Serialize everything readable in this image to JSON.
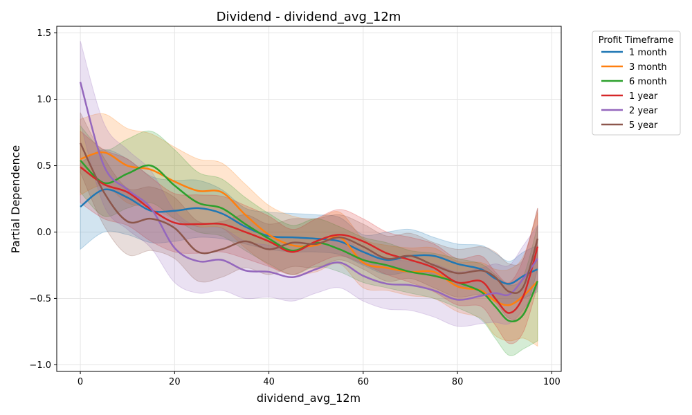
{
  "chart_data": {
    "type": "line",
    "title": "Dividend - dividend_avg_12m",
    "xlabel": "dividend_avg_12m",
    "ylabel": "Partial Dependence",
    "xlim": [
      -5,
      102
    ],
    "ylim": [
      -1.05,
      1.55
    ],
    "xticks": [
      0,
      20,
      40,
      60,
      80,
      100
    ],
    "yticks": [
      -1.0,
      -0.5,
      0.0,
      0.5,
      1.0,
      1.5
    ],
    "xtick_labels": [
      "0",
      "20",
      "40",
      "60",
      "80",
      "100"
    ],
    "ytick_labels": [
      "−1.0",
      "−0.5",
      "0.0",
      "0.5",
      "1.0",
      "1.5"
    ],
    "grid": true,
    "legend": {
      "title": "Profit Timeframe",
      "placement": "outside-right"
    },
    "x": [
      0,
      5,
      10,
      15,
      20,
      25,
      30,
      35,
      40,
      45,
      50,
      55,
      60,
      65,
      70,
      75,
      80,
      85,
      88,
      91,
      94,
      97
    ],
    "series": [
      {
        "name": "1 month",
        "color": "#1f77b4",
        "values": [
          0.19,
          0.32,
          0.26,
          0.16,
          0.16,
          0.18,
          0.14,
          0.04,
          -0.03,
          -0.04,
          -0.05,
          -0.07,
          -0.15,
          -0.21,
          -0.18,
          -0.18,
          -0.24,
          -0.28,
          -0.35,
          -0.39,
          -0.33,
          -0.28
        ],
        "ci_lower": [
          -0.13,
          0.0,
          -0.02,
          -0.08,
          -0.07,
          -0.04,
          -0.05,
          -0.09,
          -0.13,
          -0.15,
          -0.15,
          -0.17,
          -0.25,
          -0.32,
          -0.3,
          -0.32,
          -0.4,
          -0.45,
          -0.52,
          -0.55,
          -0.5,
          -0.45
        ],
        "ci_upper": [
          0.52,
          0.62,
          0.55,
          0.42,
          0.39,
          0.39,
          0.32,
          0.18,
          0.15,
          0.14,
          0.13,
          0.11,
          -0.02,
          0.0,
          0.02,
          -0.04,
          -0.09,
          -0.1,
          -0.16,
          -0.22,
          -0.15,
          -0.1
        ]
      },
      {
        "name": "3 month",
        "color": "#ff7f0e",
        "values": [
          0.55,
          0.6,
          0.5,
          0.47,
          0.38,
          0.31,
          0.3,
          0.13,
          -0.02,
          -0.1,
          -0.1,
          -0.04,
          -0.23,
          -0.27,
          -0.3,
          -0.3,
          -0.41,
          -0.44,
          -0.52,
          -0.55,
          -0.48,
          -0.37
        ],
        "ci_lower": [
          0.28,
          0.35,
          0.22,
          0.18,
          0.1,
          0.04,
          0.03,
          -0.12,
          -0.25,
          -0.32,
          -0.3,
          -0.24,
          -0.42,
          -0.44,
          -0.48,
          -0.5,
          -0.6,
          -0.65,
          -0.78,
          -0.82,
          -0.8,
          -0.86
        ],
        "ci_upper": [
          0.85,
          0.89,
          0.78,
          0.74,
          0.64,
          0.55,
          0.52,
          0.36,
          0.2,
          0.12,
          0.1,
          0.15,
          -0.05,
          -0.1,
          -0.12,
          -0.12,
          -0.22,
          -0.23,
          -0.28,
          -0.28,
          -0.18,
          0.15
        ]
      },
      {
        "name": "6 month",
        "color": "#2ca02c",
        "values": [
          0.54,
          0.37,
          0.44,
          0.5,
          0.35,
          0.22,
          0.18,
          0.06,
          -0.05,
          -0.14,
          -0.08,
          -0.13,
          -0.21,
          -0.25,
          -0.3,
          -0.33,
          -0.38,
          -0.45,
          -0.56,
          -0.67,
          -0.62,
          -0.37
        ],
        "ci_lower": [
          0.3,
          0.12,
          0.18,
          0.22,
          0.1,
          0.0,
          -0.03,
          -0.14,
          -0.24,
          -0.32,
          -0.26,
          -0.3,
          -0.38,
          -0.42,
          -0.46,
          -0.5,
          -0.57,
          -0.66,
          -0.8,
          -0.93,
          -0.88,
          -0.82
        ],
        "ci_upper": [
          0.8,
          0.62,
          0.7,
          0.76,
          0.62,
          0.45,
          0.4,
          0.26,
          0.14,
          0.05,
          0.1,
          0.04,
          -0.04,
          -0.08,
          -0.14,
          -0.16,
          -0.2,
          -0.24,
          -0.32,
          -0.4,
          -0.33,
          0.05
        ]
      },
      {
        "name": "1 year",
        "color": "#d62728",
        "values": [
          0.49,
          0.36,
          0.3,
          0.17,
          0.07,
          0.06,
          0.06,
          0.0,
          -0.07,
          -0.15,
          -0.07,
          -0.02,
          -0.07,
          -0.16,
          -0.21,
          -0.27,
          -0.38,
          -0.37,
          -0.5,
          -0.61,
          -0.48,
          -0.11
        ],
        "ci_lower": [
          0.22,
          0.1,
          0.05,
          -0.07,
          -0.15,
          -0.16,
          -0.15,
          -0.2,
          -0.26,
          -0.32,
          -0.24,
          -0.18,
          -0.24,
          -0.32,
          -0.38,
          -0.45,
          -0.55,
          -0.56,
          -0.7,
          -0.84,
          -0.75,
          -0.4
        ],
        "ci_upper": [
          0.76,
          0.62,
          0.55,
          0.41,
          0.29,
          0.28,
          0.27,
          0.2,
          0.12,
          0.02,
          0.1,
          0.17,
          0.1,
          0.0,
          -0.04,
          -0.09,
          -0.2,
          -0.18,
          -0.3,
          -0.38,
          -0.2,
          0.18
        ]
      },
      {
        "name": "2 year",
        "color": "#9467bd",
        "values": [
          1.13,
          0.5,
          0.32,
          0.18,
          -0.12,
          -0.22,
          -0.21,
          -0.29,
          -0.3,
          -0.34,
          -0.28,
          -0.23,
          -0.33,
          -0.39,
          -0.4,
          -0.44,
          -0.51,
          -0.48,
          -0.46,
          -0.47,
          -0.35,
          -0.2
        ],
        "ci_lower": [
          0.82,
          0.2,
          0.02,
          -0.12,
          -0.38,
          -0.46,
          -0.44,
          -0.5,
          -0.49,
          -0.52,
          -0.46,
          -0.42,
          -0.52,
          -0.58,
          -0.59,
          -0.64,
          -0.71,
          -0.69,
          -0.68,
          -0.69,
          -0.58,
          -0.42
        ],
        "ci_upper": [
          1.44,
          0.82,
          0.62,
          0.46,
          0.16,
          0.04,
          0.03,
          -0.07,
          -0.1,
          -0.15,
          -0.09,
          -0.04,
          -0.14,
          -0.2,
          -0.22,
          -0.24,
          -0.3,
          -0.27,
          -0.24,
          -0.25,
          -0.1,
          0.05
        ]
      },
      {
        "name": "5 year",
        "color": "#8c564b",
        "values": [
          0.67,
          0.3,
          0.08,
          0.1,
          0.03,
          -0.15,
          -0.13,
          -0.07,
          -0.13,
          -0.08,
          -0.09,
          -0.04,
          -0.11,
          -0.2,
          -0.18,
          -0.25,
          -0.31,
          -0.29,
          -0.34,
          -0.45,
          -0.41,
          -0.05
        ],
        "ci_lower": [
          0.45,
          0.05,
          -0.17,
          -0.14,
          -0.2,
          -0.37,
          -0.34,
          -0.27,
          -0.32,
          -0.26,
          -0.27,
          -0.21,
          -0.28,
          -0.37,
          -0.35,
          -0.42,
          -0.49,
          -0.47,
          -0.53,
          -0.65,
          -0.62,
          -0.28
        ],
        "ci_upper": [
          0.9,
          0.56,
          0.33,
          0.34,
          0.26,
          0.08,
          0.08,
          0.13,
          0.06,
          0.1,
          0.1,
          0.13,
          0.06,
          -0.03,
          -0.01,
          -0.08,
          -0.13,
          -0.11,
          -0.15,
          -0.24,
          -0.2,
          0.18
        ]
      }
    ]
  }
}
